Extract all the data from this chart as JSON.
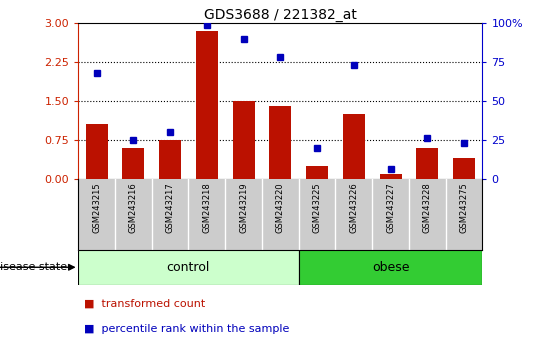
{
  "title": "GDS3688 / 221382_at",
  "samples": [
    "GSM243215",
    "GSM243216",
    "GSM243217",
    "GSM243218",
    "GSM243219",
    "GSM243220",
    "GSM243225",
    "GSM243226",
    "GSM243227",
    "GSM243228",
    "GSM243275"
  ],
  "transformed_count": [
    1.05,
    0.6,
    0.75,
    2.85,
    1.5,
    1.4,
    0.25,
    1.25,
    0.1,
    0.6,
    0.4
  ],
  "percentile_rank": [
    68,
    25,
    30,
    99,
    90,
    78,
    20,
    73,
    6,
    26,
    23
  ],
  "control_count": 6,
  "obese_count": 5,
  "bar_color": "#bb1100",
  "dot_color": "#0000bb",
  "left_ylim": [
    0,
    3
  ],
  "right_ylim": [
    0,
    100
  ],
  "left_yticks": [
    0,
    0.75,
    1.5,
    2.25,
    3
  ],
  "right_yticks": [
    0,
    25,
    50,
    75,
    100
  ],
  "right_yticklabels": [
    "0",
    "25",
    "50",
    "75",
    "100%"
  ],
  "left_ytick_color": "#cc2200",
  "right_ytick_color": "#0000cc",
  "hline_values": [
    0.75,
    1.5,
    2.25
  ],
  "control_label": "control",
  "obese_label": "obese",
  "disease_state_label": "disease state",
  "control_color": "#ccffcc",
  "obese_color": "#33cc33",
  "bar_label": "transformed count",
  "dot_label": "percentile rank within the sample",
  "xlabel_area_color": "#cccccc",
  "fig_width": 5.39,
  "fig_height": 3.54,
  "dpi": 100
}
